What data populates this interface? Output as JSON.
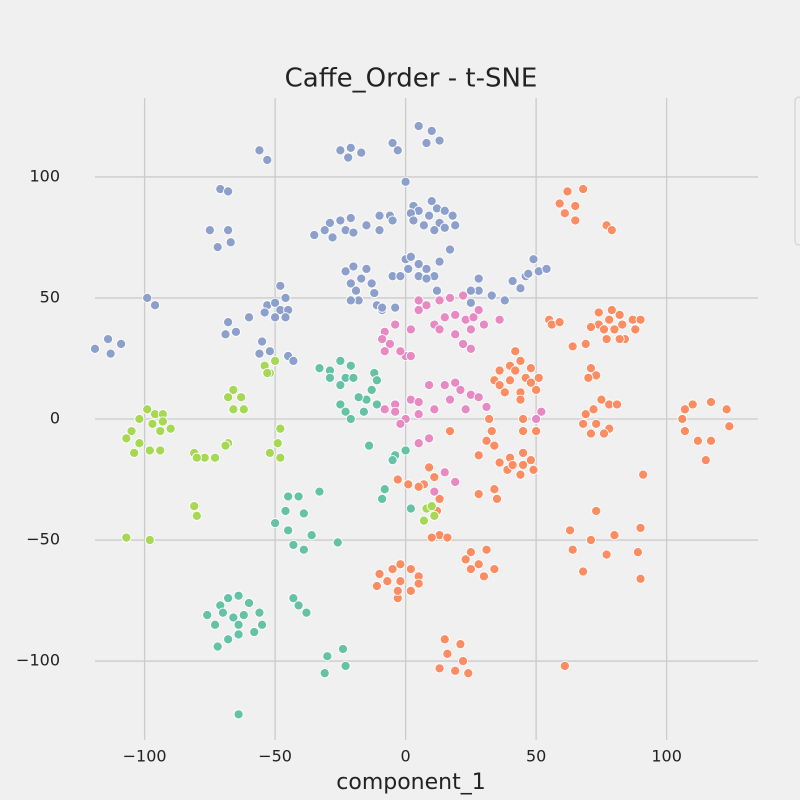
{
  "chart_data": {
    "type": "scatter",
    "title": "Caffe_Order - t-SNE",
    "x_label": "component_1",
    "xlim": [
      -119,
      135
    ],
    "ylim": [
      -132.6,
      132.6
    ],
    "grid": true,
    "xticks": [
      {
        "value": -100,
        "label": "−100"
      },
      {
        "value": -50,
        "label": "−50"
      },
      0,
      50,
      100
    ],
    "yticks": [
      {
        "value": -100,
        "label": "−100"
      },
      {
        "value": -50,
        "label": "−50"
      },
      0,
      50,
      100
    ],
    "series": [
      {
        "color": "#8da0cb",
        "x": [
          -56,
          -53,
          -71,
          -68,
          -75,
          -68,
          -72,
          -67,
          -99,
          -96,
          -119,
          -114,
          -113,
          -109,
          -60,
          -68,
          -65,
          -69,
          -55,
          -56,
          -52,
          -53,
          -48,
          -46,
          -50,
          -48,
          -54,
          -45,
          -50,
          -46,
          -45,
          -43,
          -25,
          -21,
          -17,
          -22,
          -5,
          -3,
          5,
          10,
          8,
          13,
          0,
          -29,
          -31,
          -35,
          -25,
          -21,
          -23,
          -20,
          -28,
          -15,
          -10,
          -6,
          -5,
          -10,
          3,
          9,
          5,
          12,
          15,
          7,
          13,
          18,
          2,
          3,
          11,
          15,
          10,
          19,
          -23,
          -20,
          -17,
          -21,
          -15,
          -13,
          -19,
          -12,
          -18,
          -11,
          -9,
          -21,
          -5,
          0,
          1,
          2,
          5,
          -2,
          5,
          8,
          11,
          13,
          12,
          17,
          8,
          -4,
          -9,
          28,
          28,
          33,
          38,
          41,
          46,
          47,
          51,
          49,
          54,
          44,
          25,
          25
        ],
        "values": [
          111,
          107,
          95,
          94,
          78,
          78,
          71,
          73,
          50,
          47,
          29,
          33,
          27,
          31,
          42,
          40,
          36,
          35,
          32,
          27,
          28,
          47,
          55,
          50,
          48,
          45,
          44,
          45,
          42,
          42,
          26,
          24,
          111,
          112,
          110,
          108,
          114,
          111,
          121,
          119,
          114,
          115,
          98,
          81,
          78,
          76,
          82,
          83,
          78,
          77,
          75,
          80,
          84,
          84,
          82,
          78,
          88,
          84,
          86,
          87,
          86,
          80,
          81,
          84,
          85,
          82,
          78,
          79,
          90,
          80,
          61,
          63,
          58,
          56,
          62,
          56,
          53,
          52,
          49,
          47,
          45,
          49,
          59,
          66,
          62,
          67,
          64,
          59,
          59,
          62,
          59,
          65,
          53,
          70,
          58,
          46,
          46,
          58,
          53,
          51,
          49,
          57,
          59,
          60,
          61,
          66,
          62,
          54,
          53,
          48
        ]
      },
      {
        "color": "#fc8d62",
        "x": [
          62,
          68,
          59,
          65,
          61,
          65,
          77,
          79,
          78,
          82,
          74,
          87,
          80,
          84,
          74,
          77,
          88,
          79,
          71,
          83,
          90,
          76,
          82,
          64,
          69,
          55,
          56,
          59,
          71,
          73,
          70,
          75,
          78,
          81,
          69,
          72,
          68,
          73,
          78,
          71,
          76,
          107,
          110,
          117,
          123,
          124,
          106,
          107,
          112,
          117,
          115,
          91,
          73,
          63,
          64,
          68,
          77,
          71,
          80,
          90,
          89,
          90,
          61,
          36,
          40,
          44,
          48,
          51,
          50,
          44,
          38,
          34,
          40,
          46,
          42,
          36,
          48,
          44,
          42,
          40,
          45,
          48,
          49,
          44,
          39,
          41,
          45,
          36,
          32,
          33,
          31,
          34,
          28,
          45,
          45,
          50,
          17,
          9,
          11,
          7,
          5,
          1,
          -3,
          34,
          35,
          28,
          13,
          16,
          10,
          31,
          25,
          23,
          28,
          34,
          30,
          25,
          -3,
          -10,
          -5,
          -2,
          2,
          5,
          2,
          -3,
          -7,
          -2,
          -11,
          5,
          15,
          21,
          16,
          22,
          13,
          19,
          24,
          12,
          13
        ],
        "values": [
          94,
          95,
          89,
          88,
          85,
          82,
          80,
          78,
          41,
          43,
          44,
          41,
          37,
          33,
          39,
          33,
          37,
          45,
          38,
          39,
          41,
          37,
          33,
          30,
          31,
          41,
          39,
          40,
          21,
          18,
          17,
          8,
          6,
          6,
          2,
          4,
          -2,
          -2,
          -4,
          -6,
          -6,
          4,
          6,
          7,
          4,
          -3,
          0,
          -5,
          -9,
          -9,
          -17,
          -23,
          -38,
          -46,
          -54,
          -63,
          -56,
          -50,
          -48,
          -45,
          -55,
          -66,
          -102,
          20,
          22,
          24,
          21,
          17,
          12,
          11,
          11,
          16,
          16,
          17,
          20,
          14,
          15,
          8,
          28,
          -16,
          -14,
          -17,
          -21,
          -23,
          -21,
          -19,
          -19,
          -18,
          0,
          -5,
          -9,
          -11,
          -15,
          0,
          -5,
          -5,
          -5,
          -20,
          -24,
          -27,
          -28,
          -27,
          -25,
          -29,
          -33,
          -31,
          -48,
          -49,
          -49,
          -54,
          -55,
          -58,
          -60,
          -62,
          -65,
          -62,
          -74,
          -64,
          -62,
          -60,
          -62,
          -65,
          -71,
          -71,
          -67,
          -67,
          -69,
          -68,
          -91,
          -93,
          -97,
          -100,
          -103,
          -104,
          -105,
          -38,
          -33
        ]
      },
      {
        "color": "#e78ac3",
        "x": [
          -8,
          -4,
          -9,
          -6,
          -8,
          2,
          0,
          2,
          -2,
          5,
          8,
          5,
          13,
          17,
          22,
          11,
          15,
          19,
          23,
          26,
          28,
          25,
          19,
          22,
          25,
          13,
          30,
          36,
          -8,
          -4,
          2,
          5,
          9,
          15,
          19,
          21,
          25,
          28,
          31,
          5,
          0,
          -2,
          -4,
          11,
          17,
          23,
          9,
          5,
          15,
          19,
          11,
          52,
          50
        ],
        "values": [
          36,
          39,
          33,
          31,
          28,
          37,
          26,
          26,
          28,
          49,
          47,
          45,
          49,
          50,
          51,
          39,
          42,
          43,
          41,
          42,
          45,
          37,
          35,
          31,
          29,
          37,
          39,
          41,
          4,
          6,
          8,
          7,
          14,
          14,
          15,
          12,
          10,
          9,
          5,
          2,
          0,
          -2,
          3,
          4,
          8,
          4,
          -8,
          -10,
          -22,
          -26,
          -30,
          3,
          0
        ]
      },
      {
        "color": "#66c2a5",
        "x": [
          -29,
          -25,
          -21,
          -23,
          -29,
          -20,
          -25,
          -33,
          -12,
          -11,
          -13,
          -15,
          -18,
          -11,
          -25,
          -23,
          -21,
          -16,
          -14,
          -4,
          0,
          -5,
          -8,
          -9,
          -46,
          -45,
          -41,
          -33,
          -45,
          -39,
          -36,
          -43,
          -39,
          -50,
          -26,
          -43,
          -41,
          -38,
          -76,
          -73,
          -71,
          -68,
          -64,
          -60,
          -56,
          -55,
          -58,
          -64,
          -68,
          -72,
          -66,
          -62,
          -70,
          -64,
          -30,
          -24,
          -31,
          -23,
          -64,
          2
        ],
        "values": [
          20,
          24,
          22,
          17,
          17,
          17,
          14,
          21,
          19,
          16,
          12,
          8,
          9,
          6,
          6,
          3,
          0,
          3,
          -11,
          -15,
          -13,
          -17,
          -29,
          -33,
          -38,
          -32,
          -32,
          -30,
          -46,
          -39,
          -48,
          -52,
          -54,
          -43,
          -51,
          -74,
          -77,
          -80,
          -81,
          -85,
          -77,
          -74,
          -73,
          -76,
          -80,
          -85,
          -88,
          -89,
          -91,
          -94,
          -82,
          -81,
          -80,
          -85,
          -98,
          -95,
          -105,
          -102,
          -122,
          -37
        ]
      },
      {
        "color": "#a6d854",
        "x": [
          -99,
          -96,
          -93,
          -102,
          -97,
          -93,
          -90,
          -94,
          -105,
          -107,
          -102,
          -98,
          -94,
          -104,
          -81,
          -77,
          -73,
          -80,
          -68,
          -69,
          -66,
          -63,
          -62,
          -66,
          -68,
          -54,
          -52,
          -50,
          -53,
          -52,
          -48,
          -49,
          -48,
          -81,
          -80,
          -107,
          -98,
          8,
          10,
          11,
          7
        ],
        "values": [
          4,
          2,
          2,
          0,
          -2,
          -1,
          -4,
          -5,
          -5,
          -8,
          -10,
          -13,
          -13,
          -14,
          -14,
          -16,
          -16,
          -16,
          -10,
          -11,
          12,
          9,
          4,
          4,
          9,
          22,
          19,
          24,
          19,
          -14,
          -16,
          -10,
          -4,
          -36,
          -40,
          -49,
          -50,
          -37,
          -36,
          -40,
          -42
        ]
      }
    ]
  }
}
